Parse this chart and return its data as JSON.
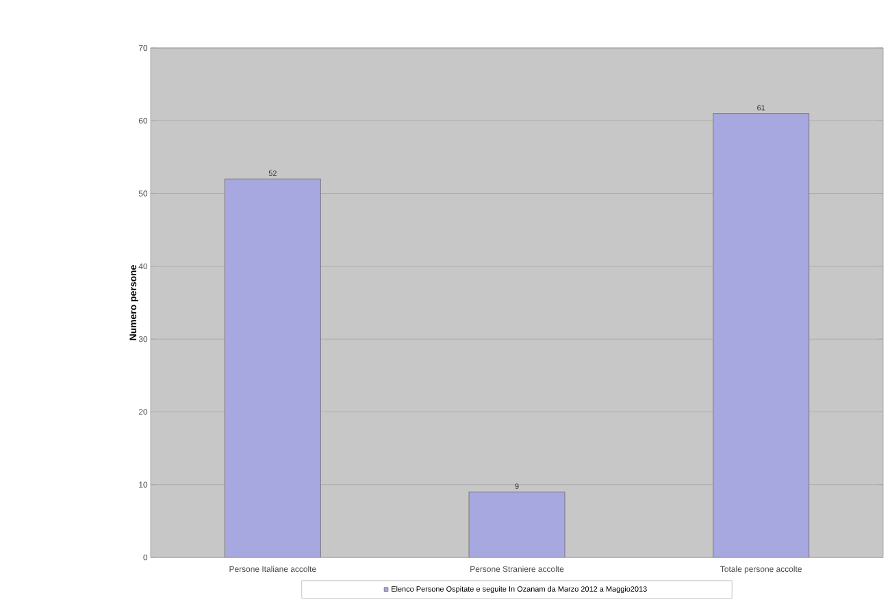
{
  "chart_data": {
    "type": "bar",
    "categories": [
      "Persone Italiane accolte",
      "Persone Straniere accolte",
      "Totale persone accolte"
    ],
    "series": [
      {
        "name": "Elenco Persone Ospitate e seguite  In Ozanam da Marzo 2012 a Maggio2013",
        "color": "#a8a8e0",
        "values": [
          52,
          9,
          61
        ]
      }
    ],
    "ylabel": "Numero persone",
    "ylim": [
      0,
      70
    ],
    "yticks": [
      0,
      10,
      20,
      30,
      40,
      50,
      60,
      70
    ],
    "grid": "y",
    "legend": "bottom",
    "data_labels": true
  }
}
